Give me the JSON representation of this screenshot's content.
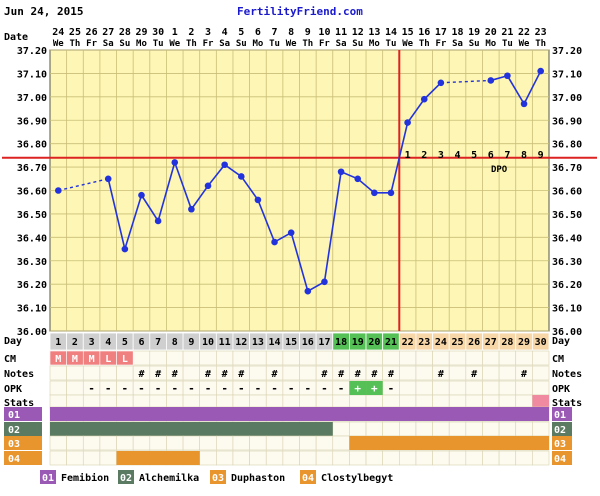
{
  "header": {
    "date": "Jun 24, 2015",
    "site": "FertilityFriend.com"
  },
  "row_labels": {
    "date": "Date",
    "day": "Day",
    "cm": "CM",
    "notes": "Notes",
    "opk": "OPK",
    "stats": "Stats"
  },
  "colors": {
    "plot_bg": "#fdf6b4",
    "grid": "#c9be78",
    "temp_line": "#2233dd",
    "coverline": "#dd2222",
    "day_pre": "#cfcfcf",
    "day_fertile": "#55c055",
    "day_post": "#f7d7a8",
    "cm_cell": "#f08080",
    "opk_positive": "#55c055",
    "stats_mark": "#f08aa0",
    "med1": "#9b59b6",
    "med2": "#5a7a62",
    "med3": "#e8952e",
    "med4": "#e8952e",
    "row_bg": "#fdfaf0"
  },
  "chart_data": {
    "type": "line",
    "title": "",
    "ylabel": "",
    "ylim": [
      36.0,
      37.2
    ],
    "y_ticks": [
      "36.00",
      "36.10",
      "36.20",
      "36.30",
      "36.40",
      "36.50",
      "36.60",
      "36.70",
      "36.80",
      "36.90",
      "37.00",
      "37.10",
      "37.20"
    ],
    "dates": [
      "24",
      "25",
      "26",
      "27",
      "28",
      "29",
      "30",
      "1",
      "2",
      "3",
      "4",
      "5",
      "6",
      "7",
      "8",
      "9",
      "10",
      "11",
      "12",
      "13",
      "14",
      "15",
      "16",
      "17",
      "18",
      "19",
      "20",
      "21",
      "22",
      "23"
    ],
    "weekdays": [
      "We",
      "Th",
      "Fr",
      "Sa",
      "Su",
      "Mo",
      "Tu",
      "We",
      "Th",
      "Fr",
      "Sa",
      "Su",
      "Mo",
      "Tu",
      "We",
      "Th",
      "Fr",
      "Sa",
      "Su",
      "Mo",
      "Tu",
      "We",
      "Th",
      "Fr",
      "Sa",
      "Su",
      "Mo",
      "Tu",
      "We",
      "Th"
    ],
    "cycle_days": [
      "1",
      "2",
      "3",
      "4",
      "5",
      "6",
      "7",
      "8",
      "9",
      "10",
      "11",
      "12",
      "13",
      "14",
      "15",
      "16",
      "17",
      "18",
      "19",
      "20",
      "21",
      "22",
      "23",
      "24",
      "25",
      "26",
      "27",
      "28",
      "29",
      "30"
    ],
    "temperatures": [
      36.6,
      null,
      null,
      36.65,
      36.35,
      36.58,
      36.47,
      36.72,
      36.52,
      36.62,
      36.71,
      36.66,
      36.56,
      36.38,
      36.42,
      36.17,
      36.21,
      36.68,
      36.65,
      36.59,
      36.59,
      36.89,
      36.99,
      37.06,
      null,
      null,
      37.07,
      37.09,
      36.97,
      37.11
    ],
    "dashed_segments": [
      [
        0,
        3
      ],
      [
        23,
        26
      ]
    ],
    "coverline": 36.74,
    "ovulation_day": 21,
    "dpo_labels": [
      "1",
      "2",
      "3",
      "4",
      "5",
      "6",
      "7",
      "8",
      "9"
    ],
    "dpo_text": "DPO",
    "fertile_days": [
      18,
      19,
      20,
      21
    ],
    "cm": [
      "M",
      "M",
      "M",
      "L",
      "L"
    ],
    "notes_days": [
      6,
      7,
      8,
      10,
      11,
      12,
      14,
      17,
      18,
      19,
      20,
      21,
      24,
      26,
      29
    ],
    "notes_symbol": "#",
    "opk": [
      "",
      "",
      "-",
      "-",
      "-",
      "-",
      "-",
      "-",
      "-",
      "-",
      "-",
      "-",
      "-",
      "-",
      "-",
      "-",
      "-",
      "-",
      "+",
      "+",
      "-",
      "",
      "",
      "",
      "",
      "",
      "",
      "",
      "",
      ""
    ],
    "stats_days": [
      30
    ],
    "medications": [
      {
        "code": "01",
        "name": "Femibion",
        "days": [
          1,
          30
        ]
      },
      {
        "code": "02",
        "name": "Alchemilka",
        "days": [
          1,
          17
        ]
      },
      {
        "code": "03",
        "name": "Duphaston",
        "days": [
          19,
          30
        ]
      },
      {
        "code": "04",
        "name": "Clostylbegyt",
        "days": [
          5,
          9
        ]
      }
    ]
  }
}
